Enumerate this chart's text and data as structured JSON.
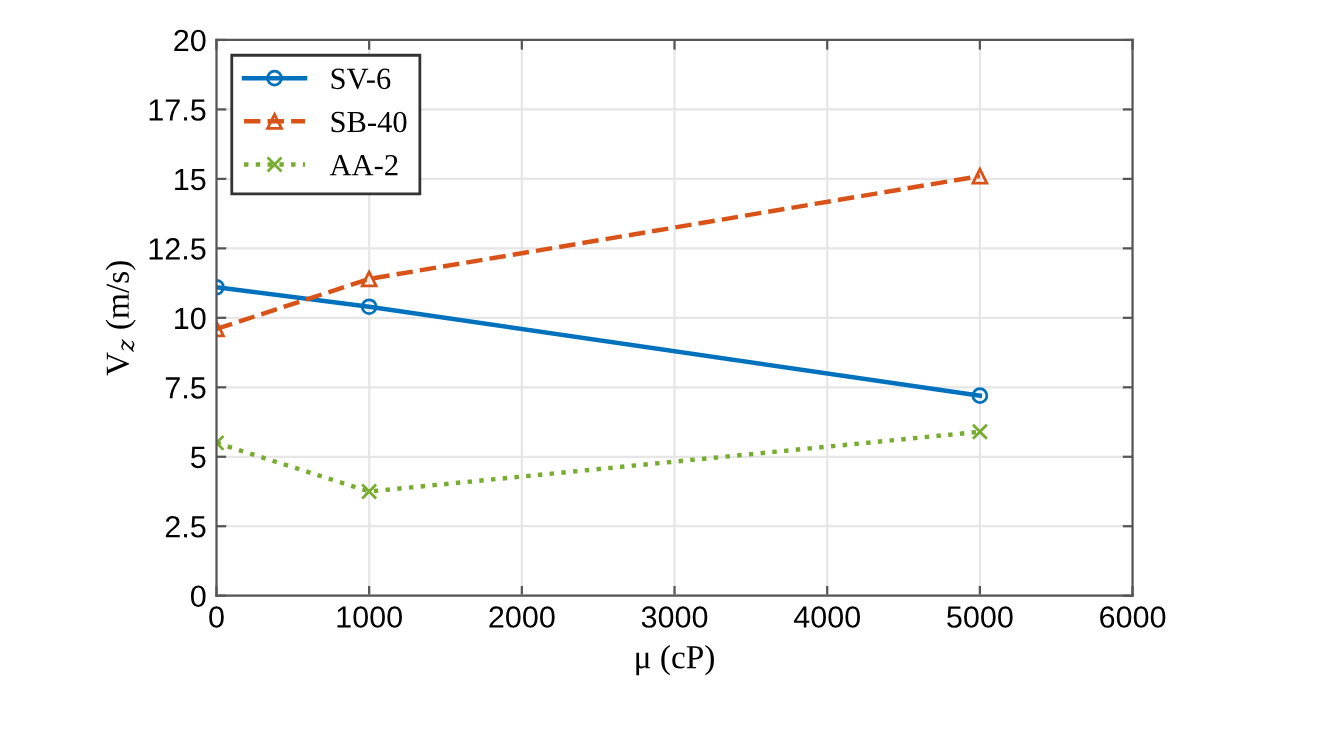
{
  "chart_data": {
    "type": "line",
    "xlabel": "μ (cP)",
    "ylabel": "V$_{z}$ (m/s)",
    "x": [
      0,
      1000,
      5000
    ],
    "series": [
      {
        "name": "SV-6",
        "color": "#0072bd",
        "values": [
          11.1,
          10.4,
          7.2
        ],
        "marker": "circle",
        "line_style": "solid"
      },
      {
        "name": "SB-40",
        "color": "#d95319",
        "values": [
          9.6,
          11.4,
          15.1
        ],
        "marker": "triangle",
        "line_style": "dashed"
      },
      {
        "name": "AA-2",
        "color": "#77ac30",
        "values": [
          5.5,
          3.75,
          5.9
        ],
        "marker": "cross",
        "line_style": "dotted"
      }
    ],
    "xlim": [
      0,
      6000
    ],
    "xticks": [
      0,
      1000,
      2000,
      3000,
      4000,
      5000,
      6000
    ],
    "ylim": [
      0,
      20
    ],
    "yticks": [
      0,
      2.5,
      5,
      7.5,
      10,
      12.5,
      15,
      17.5,
      20
    ],
    "grid": true,
    "legend": "top left"
  }
}
